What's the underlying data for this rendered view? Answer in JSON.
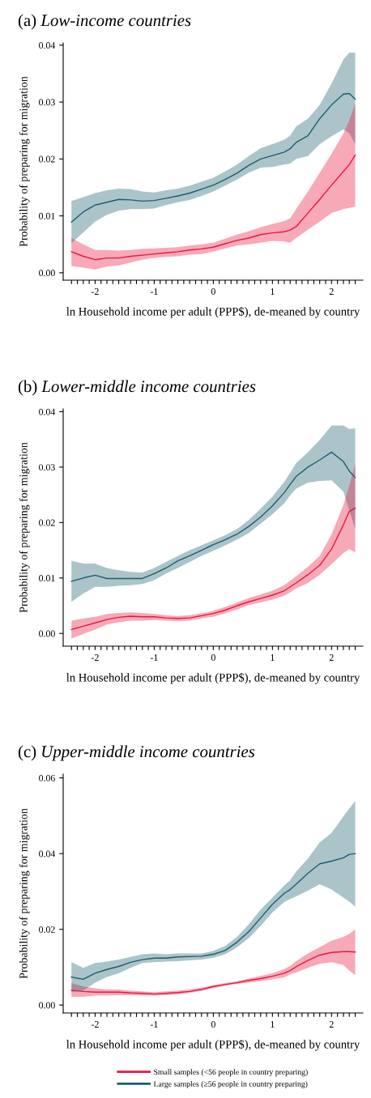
{
  "chart_data": [
    {
      "type": "line",
      "title": "(a) Low-income countries",
      "xlabel": "ln Household income per adult (PPP$), de-meaned by country",
      "ylabel": "Probability of preparing for migration",
      "x": [
        -2.4,
        -2.2,
        -2.0,
        -1.8,
        -1.6,
        -1.4,
        -1.2,
        -1.0,
        -0.8,
        -0.6,
        -0.4,
        -0.2,
        0,
        0.2,
        0.4,
        0.6,
        0.8,
        1.0,
        1.2,
        1.3,
        1.4,
        1.6,
        1.8,
        2.0,
        2.2,
        2.3,
        2.4
      ],
      "xlim": [
        -2.54,
        2.53
      ],
      "ylim": [
        -0.0013,
        0.0404
      ],
      "xticks": [
        {
          "value": -2.4,
          "label": null
        },
        {
          "value": -2.3,
          "label": null
        },
        {
          "value": -2.2,
          "label": null
        },
        {
          "value": -2.1,
          "label": null
        },
        {
          "value": -2,
          "label": "-2"
        },
        {
          "value": -1.9,
          "label": null
        },
        {
          "value": -1.8,
          "label": null
        },
        {
          "value": -1.7,
          "label": null
        },
        {
          "value": -1.6,
          "label": null
        },
        {
          "value": -1.5,
          "label": null
        },
        {
          "value": -1.4,
          "label": null
        },
        {
          "value": -1.3,
          "label": null
        },
        {
          "value": -1.2,
          "label": null
        },
        {
          "value": -1.1,
          "label": null
        },
        {
          "value": -1,
          "label": "-1"
        },
        {
          "value": -0.9,
          "label": null
        },
        {
          "value": -0.8,
          "label": null
        },
        {
          "value": -0.7,
          "label": null
        },
        {
          "value": -0.6,
          "label": null
        },
        {
          "value": -0.5,
          "label": null
        },
        {
          "value": -0.4,
          "label": null
        },
        {
          "value": -0.3,
          "label": null
        },
        {
          "value": -0.2,
          "label": null
        },
        {
          "value": -0.1,
          "label": null
        },
        0,
        {
          "value": 0.1,
          "label": null
        },
        {
          "value": 0.2,
          "label": null
        },
        {
          "value": 0.3,
          "label": null
        },
        {
          "value": 0.4,
          "label": null
        },
        {
          "value": 0.5,
          "label": null
        },
        {
          "value": 0.6,
          "label": null
        },
        {
          "value": 0.7,
          "label": null
        },
        {
          "value": 0.8,
          "label": null
        },
        {
          "value": 0.9,
          "label": null
        },
        1,
        {
          "value": 1.1,
          "label": null
        },
        {
          "value": 1.2,
          "label": null
        },
        {
          "value": 1.3,
          "label": null
        },
        {
          "value": 1.4,
          "label": null
        },
        {
          "value": 1.5,
          "label": null
        },
        {
          "value": 1.6,
          "label": null
        },
        {
          "value": 1.7,
          "label": null
        },
        {
          "value": 1.8,
          "label": null
        },
        {
          "value": 1.9,
          "label": null
        },
        2,
        {
          "value": 2.1,
          "label": null
        },
        {
          "value": 2.2,
          "label": null
        },
        {
          "value": 2.3,
          "label": null
        },
        {
          "value": 2.4,
          "label": null
        }
      ],
      "yticks": [
        {
          "value": 0,
          "label": "0.00"
        },
        {
          "value": 0.01,
          "label": "0.01"
        },
        {
          "value": 0.02,
          "label": "0.02"
        },
        {
          "value": 0.03,
          "label": "0.03"
        },
        {
          "value": 0.04,
          "label": "0.04"
        }
      ],
      "grid": false,
      "legend": false,
      "marker": "none",
      "line_style": "solid",
      "series": [
        {
          "color": "#1a5e6e",
          "values": [
            0.0089,
            0.0107,
            0.0119,
            0.0124,
            0.0129,
            0.0128,
            0.0126,
            0.0127,
            0.0131,
            0.0135,
            0.014,
            0.0147,
            0.0154,
            0.0164,
            0.0175,
            0.0189,
            0.02,
            0.0206,
            0.0212,
            0.0218,
            0.0229,
            0.0241,
            0.0271,
            0.0295,
            0.0314,
            0.0315,
            0.0305
          ],
          "upper": [
            0.0126,
            0.0133,
            0.014,
            0.0145,
            0.0148,
            0.0147,
            0.0143,
            0.0141,
            0.0145,
            0.0148,
            0.0153,
            0.016,
            0.0167,
            0.0178,
            0.019,
            0.0205,
            0.0219,
            0.0226,
            0.0234,
            0.0241,
            0.0257,
            0.0271,
            0.0295,
            0.0333,
            0.0375,
            0.0387,
            0.0387
          ],
          "lower": [
            0.0052,
            0.0071,
            0.009,
            0.0102,
            0.0109,
            0.0112,
            0.0112,
            0.0113,
            0.0119,
            0.0124,
            0.0128,
            0.0135,
            0.0143,
            0.0153,
            0.0164,
            0.0176,
            0.0185,
            0.0186,
            0.019,
            0.0192,
            0.02,
            0.0205,
            0.0226,
            0.024,
            0.0252,
            0.0245,
            0.0226
          ]
        },
        {
          "color": "#e8173f",
          "values": [
            0.0037,
            0.0029,
            0.0023,
            0.0026,
            0.0026,
            0.0029,
            0.0031,
            0.0033,
            0.0035,
            0.0037,
            0.004,
            0.0042,
            0.0045,
            0.0051,
            0.0057,
            0.0061,
            0.0067,
            0.007,
            0.0072,
            0.0075,
            0.0081,
            0.0105,
            0.0129,
            0.0154,
            0.0178,
            0.019,
            0.0207
          ],
          "upper": [
            0.0061,
            0.005,
            0.004,
            0.004,
            0.0039,
            0.004,
            0.0042,
            0.0043,
            0.0044,
            0.0045,
            0.0048,
            0.005,
            0.0053,
            0.006,
            0.0067,
            0.0073,
            0.008,
            0.0086,
            0.0091,
            0.0096,
            0.0112,
            0.0143,
            0.0176,
            0.0209,
            0.0245,
            0.0268,
            0.0297
          ],
          "lower": [
            0.0012,
            0.0009,
            0.0006,
            0.0011,
            0.0013,
            0.0018,
            0.0023,
            0.0026,
            0.0028,
            0.0029,
            0.0032,
            0.0033,
            0.0037,
            0.0043,
            0.0048,
            0.005,
            0.0053,
            0.0056,
            0.0055,
            0.0053,
            0.0061,
            0.0076,
            0.009,
            0.0105,
            0.0112,
            0.0114,
            0.0116
          ]
        }
      ]
    },
    {
      "type": "line",
      "title": "(b) Lower-middle income countries",
      "xlabel": "ln Household income per adult (PPP$), de-meaned by country",
      "ylabel": "Probability of preparing for migration",
      "x": [
        -2.4,
        -2.2,
        -2.0,
        -1.8,
        -1.6,
        -1.4,
        -1.2,
        -1.0,
        -0.8,
        -0.6,
        -0.4,
        -0.2,
        0,
        0.2,
        0.4,
        0.6,
        0.8,
        1.0,
        1.2,
        1.3,
        1.4,
        1.6,
        1.8,
        2.0,
        2.2,
        2.3,
        2.4
      ],
      "xlim": [
        -2.54,
        2.53
      ],
      "ylim": [
        -0.0023,
        0.0405
      ],
      "xticks": [
        {
          "value": -2.4,
          "label": null
        },
        {
          "value": -2.3,
          "label": null
        },
        {
          "value": -2.2,
          "label": null
        },
        {
          "value": -2.1,
          "label": null
        },
        {
          "value": -2,
          "label": "-2"
        },
        {
          "value": -1.9,
          "label": null
        },
        {
          "value": -1.8,
          "label": null
        },
        {
          "value": -1.7,
          "label": null
        },
        {
          "value": -1.6,
          "label": null
        },
        {
          "value": -1.5,
          "label": null
        },
        {
          "value": -1.4,
          "label": null
        },
        {
          "value": -1.3,
          "label": null
        },
        {
          "value": -1.2,
          "label": null
        },
        {
          "value": -1.1,
          "label": null
        },
        {
          "value": -1,
          "label": "-1"
        },
        {
          "value": -0.9,
          "label": null
        },
        {
          "value": -0.8,
          "label": null
        },
        {
          "value": -0.7,
          "label": null
        },
        {
          "value": -0.6,
          "label": null
        },
        {
          "value": -0.5,
          "label": null
        },
        {
          "value": -0.4,
          "label": null
        },
        {
          "value": -0.3,
          "label": null
        },
        {
          "value": -0.2,
          "label": null
        },
        {
          "value": -0.1,
          "label": null
        },
        0,
        {
          "value": 0.1,
          "label": null
        },
        {
          "value": 0.2,
          "label": null
        },
        {
          "value": 0.3,
          "label": null
        },
        {
          "value": 0.4,
          "label": null
        },
        {
          "value": 0.5,
          "label": null
        },
        {
          "value": 0.6,
          "label": null
        },
        {
          "value": 0.7,
          "label": null
        },
        {
          "value": 0.8,
          "label": null
        },
        {
          "value": 0.9,
          "label": null
        },
        1,
        {
          "value": 1.1,
          "label": null
        },
        {
          "value": 1.2,
          "label": null
        },
        {
          "value": 1.3,
          "label": null
        },
        {
          "value": 1.4,
          "label": null
        },
        {
          "value": 1.5,
          "label": null
        },
        {
          "value": 1.6,
          "label": null
        },
        {
          "value": 1.7,
          "label": null
        },
        {
          "value": 1.8,
          "label": null
        },
        {
          "value": 1.9,
          "label": null
        },
        2,
        {
          "value": 2.1,
          "label": null
        },
        {
          "value": 2.2,
          "label": null
        },
        {
          "value": 2.3,
          "label": null
        },
        {
          "value": 2.4,
          "label": null
        }
      ],
      "yticks": [
        {
          "value": 0,
          "label": "0.00"
        },
        {
          "value": 0.01,
          "label": "0.01"
        },
        {
          "value": 0.02,
          "label": "0.02"
        },
        {
          "value": 0.03,
          "label": "0.03"
        },
        {
          "value": 0.04,
          "label": "0.04"
        }
      ],
      "grid": false,
      "legend": false,
      "marker": "none",
      "line_style": "solid",
      "series": [
        {
          "color": "#1a5e6e",
          "values": [
            0.0094,
            0.01,
            0.0105,
            0.0099,
            0.0099,
            0.0099,
            0.0099,
            0.0108,
            0.0118,
            0.0131,
            0.014,
            0.015,
            0.016,
            0.0169,
            0.0179,
            0.0193,
            0.021,
            0.023,
            0.0254,
            0.0269,
            0.0283,
            0.03,
            0.0313,
            0.0327,
            0.031,
            0.0293,
            0.0281
          ],
          "upper": [
            0.0131,
            0.0126,
            0.0126,
            0.0118,
            0.0114,
            0.0111,
            0.011,
            0.0118,
            0.0129,
            0.014,
            0.015,
            0.0159,
            0.0168,
            0.0177,
            0.0188,
            0.0205,
            0.0225,
            0.0247,
            0.0273,
            0.029,
            0.0307,
            0.0327,
            0.0349,
            0.0375,
            0.0375,
            0.0369,
            0.037
          ],
          "lower": [
            0.0057,
            0.0072,
            0.0084,
            0.0084,
            0.0086,
            0.0087,
            0.0089,
            0.0096,
            0.0108,
            0.0118,
            0.0129,
            0.014,
            0.0149,
            0.0159,
            0.0169,
            0.0181,
            0.0198,
            0.0215,
            0.0235,
            0.0249,
            0.0261,
            0.0272,
            0.0275,
            0.0276,
            0.0256,
            0.0222,
            0.0188
          ]
        },
        {
          "color": "#e8173f",
          "values": [
            0.0007,
            0.0013,
            0.0019,
            0.0025,
            0.0029,
            0.0031,
            0.003,
            0.003,
            0.0028,
            0.0027,
            0.0028,
            0.0032,
            0.0036,
            0.0042,
            0.005,
            0.0057,
            0.0063,
            0.0069,
            0.0077,
            0.0084,
            0.0091,
            0.0106,
            0.0123,
            0.0152,
            0.0196,
            0.022,
            0.0226
          ],
          "upper": [
            0.0023,
            0.0027,
            0.003,
            0.0035,
            0.0037,
            0.0038,
            0.0037,
            0.0035,
            0.0033,
            0.0031,
            0.0033,
            0.0036,
            0.0041,
            0.0048,
            0.0056,
            0.0064,
            0.007,
            0.0077,
            0.0087,
            0.0095,
            0.0103,
            0.012,
            0.014,
            0.0179,
            0.0232,
            0.0266,
            0.0306
          ],
          "lower": [
            -0.0009,
            -0.0001,
            0.0007,
            0.0016,
            0.002,
            0.0023,
            0.0023,
            0.0024,
            0.0023,
            0.0022,
            0.0023,
            0.0027,
            0.003,
            0.0036,
            0.0043,
            0.0051,
            0.0056,
            0.0061,
            0.0068,
            0.0074,
            0.0081,
            0.0091,
            0.0106,
            0.0125,
            0.0145,
            0.0152,
            0.0146
          ]
        }
      ]
    },
    {
      "type": "line",
      "title": "(c) Upper-middle income countries",
      "xlabel": "ln Household income per adult (PPP$), de-meaned by country",
      "ylabel": "Probability of preparing for migration",
      "x": [
        -2.4,
        -2.2,
        -2.0,
        -1.8,
        -1.6,
        -1.4,
        -1.2,
        -1.0,
        -0.8,
        -0.6,
        -0.4,
        -0.2,
        0,
        0.2,
        0.4,
        0.6,
        0.8,
        1.0,
        1.2,
        1.3,
        1.4,
        1.6,
        1.8,
        2.0,
        2.2,
        2.3,
        2.4
      ],
      "xlim": [
        -2.54,
        2.53
      ],
      "ylim": [
        -0.0021,
        0.061
      ],
      "xticks": [
        {
          "value": -2.4,
          "label": null
        },
        {
          "value": -2.3,
          "label": null
        },
        {
          "value": -2.2,
          "label": null
        },
        {
          "value": -2.1,
          "label": null
        },
        {
          "value": -2,
          "label": "-2"
        },
        {
          "value": -1.9,
          "label": null
        },
        {
          "value": -1.8,
          "label": null
        },
        {
          "value": -1.7,
          "label": null
        },
        {
          "value": -1.6,
          "label": null
        },
        {
          "value": -1.5,
          "label": null
        },
        {
          "value": -1.4,
          "label": null
        },
        {
          "value": -1.3,
          "label": null
        },
        {
          "value": -1.2,
          "label": null
        },
        {
          "value": -1.1,
          "label": null
        },
        {
          "value": -1,
          "label": "-1"
        },
        {
          "value": -0.9,
          "label": null
        },
        {
          "value": -0.8,
          "label": null
        },
        {
          "value": -0.7,
          "label": null
        },
        {
          "value": -0.6,
          "label": null
        },
        {
          "value": -0.5,
          "label": null
        },
        {
          "value": -0.4,
          "label": null
        },
        {
          "value": -0.3,
          "label": null
        },
        {
          "value": -0.2,
          "label": null
        },
        {
          "value": -0.1,
          "label": null
        },
        0,
        {
          "value": 0.1,
          "label": null
        },
        {
          "value": 0.2,
          "label": null
        },
        {
          "value": 0.3,
          "label": null
        },
        {
          "value": 0.4,
          "label": null
        },
        {
          "value": 0.5,
          "label": null
        },
        {
          "value": 0.6,
          "label": null
        },
        {
          "value": 0.7,
          "label": null
        },
        {
          "value": 0.8,
          "label": null
        },
        {
          "value": 0.9,
          "label": null
        },
        1,
        {
          "value": 1.1,
          "label": null
        },
        {
          "value": 1.2,
          "label": null
        },
        {
          "value": 1.3,
          "label": null
        },
        {
          "value": 1.4,
          "label": null
        },
        {
          "value": 1.5,
          "label": null
        },
        {
          "value": 1.6,
          "label": null
        },
        {
          "value": 1.7,
          "label": null
        },
        {
          "value": 1.8,
          "label": null
        },
        {
          "value": 1.9,
          "label": null
        },
        2,
        {
          "value": 2.1,
          "label": null
        },
        {
          "value": 2.2,
          "label": null
        },
        {
          "value": 2.3,
          "label": null
        },
        {
          "value": 2.4,
          "label": null
        }
      ],
      "yticks": [
        {
          "value": 0,
          "label": "0.00"
        },
        {
          "value": 0.02,
          "label": "0.02"
        },
        {
          "value": 0.04,
          "label": "0.04"
        },
        {
          "value": 0.06,
          "label": "0.06"
        }
      ],
      "grid": false,
      "legend": "bottom",
      "marker": "none",
      "line_style": "solid",
      "series": [
        {
          "name": "Small samples (<56 people in country preparing)",
          "color": "#e8173f",
          "values": [
            0.0039,
            0.0036,
            0.0034,
            0.0034,
            0.0034,
            0.0032,
            0.0031,
            0.0029,
            0.0031,
            0.0033,
            0.0036,
            0.0041,
            0.0049,
            0.0054,
            0.0059,
            0.0065,
            0.007,
            0.0076,
            0.0084,
            0.0091,
            0.0101,
            0.0118,
            0.0132,
            0.0139,
            0.0141,
            0.0141,
            0.014
          ],
          "upper": [
            0.0058,
            0.0049,
            0.0044,
            0.0041,
            0.0041,
            0.0038,
            0.0036,
            0.0034,
            0.0036,
            0.0038,
            0.0041,
            0.0046,
            0.0052,
            0.0058,
            0.0063,
            0.007,
            0.0077,
            0.0084,
            0.0095,
            0.0103,
            0.0116,
            0.0136,
            0.0153,
            0.017,
            0.018,
            0.0188,
            0.02
          ],
          "lower": [
            0.0022,
            0.0022,
            0.0025,
            0.0025,
            0.0026,
            0.0026,
            0.0025,
            0.0025,
            0.0026,
            0.0028,
            0.0032,
            0.0038,
            0.0044,
            0.0051,
            0.0056,
            0.0059,
            0.0063,
            0.0068,
            0.0073,
            0.0081,
            0.0086,
            0.0098,
            0.0109,
            0.0113,
            0.0106,
            0.0091,
            0.0079
          ]
        },
        {
          "name": "Large samples (≥56 people in country preparing)",
          "color": "#1a5e6e",
          "values": [
            0.0074,
            0.0068,
            0.0084,
            0.0094,
            0.0102,
            0.0113,
            0.012,
            0.0124,
            0.0124,
            0.0127,
            0.0128,
            0.0129,
            0.0134,
            0.0144,
            0.0166,
            0.0194,
            0.023,
            0.0266,
            0.0295,
            0.0305,
            0.0319,
            0.0348,
            0.0373,
            0.038,
            0.0389,
            0.0398,
            0.04
          ],
          "upper": [
            0.0113,
            0.0098,
            0.0111,
            0.0115,
            0.012,
            0.0127,
            0.0134,
            0.0136,
            0.0134,
            0.0136,
            0.0136,
            0.0136,
            0.0143,
            0.0156,
            0.018,
            0.0213,
            0.0252,
            0.0284,
            0.0316,
            0.033,
            0.0352,
            0.0387,
            0.043,
            0.0455,
            0.0498,
            0.0519,
            0.0539
          ],
          "lower": [
            0.0034,
            0.0038,
            0.0059,
            0.0074,
            0.0084,
            0.0098,
            0.0111,
            0.0113,
            0.0115,
            0.0116,
            0.0118,
            0.012,
            0.0125,
            0.0134,
            0.0152,
            0.0177,
            0.0209,
            0.0245,
            0.0272,
            0.028,
            0.0287,
            0.0302,
            0.0319,
            0.0305,
            0.0284,
            0.0273,
            0.026
          ]
        }
      ]
    }
  ]
}
